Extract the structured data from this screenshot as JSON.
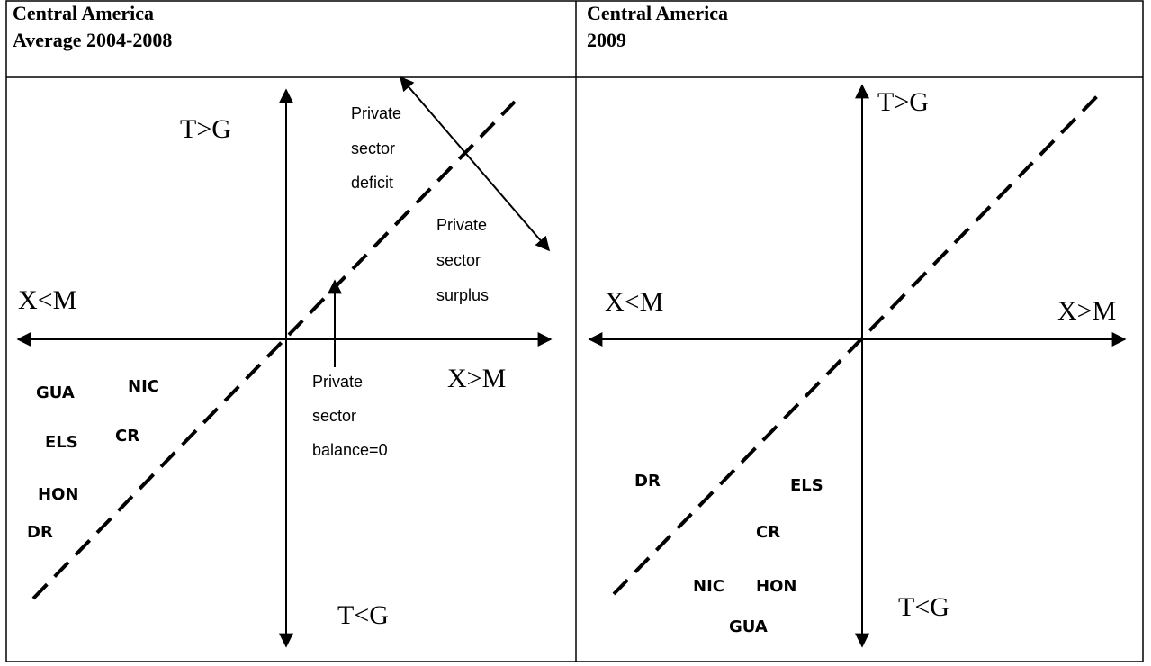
{
  "panels": [
    {
      "title": [
        "Central America",
        "Average 2004-2008"
      ],
      "axis_labels": {
        "top": "T>G",
        "left": "X<M",
        "right": "X>M",
        "bottom": "T<G"
      },
      "countries": [
        "GUA",
        "NIC",
        "ELS",
        "CR",
        "HON",
        "DR"
      ],
      "annotations": [
        [
          "Private",
          "sector",
          "deficit"
        ],
        [
          "Private",
          "sector",
          "surplus"
        ],
        [
          "Private",
          "sector",
          "balance=0"
        ]
      ]
    },
    {
      "title": [
        "Central America",
        "2009"
      ],
      "axis_labels": {
        "top": "T>G",
        "left": "X<M",
        "right": "X>M",
        "bottom": "T<G"
      },
      "countries": [
        "DR",
        "ELS",
        "CR",
        "NIC",
        "HON",
        "GUA"
      ]
    }
  ]
}
